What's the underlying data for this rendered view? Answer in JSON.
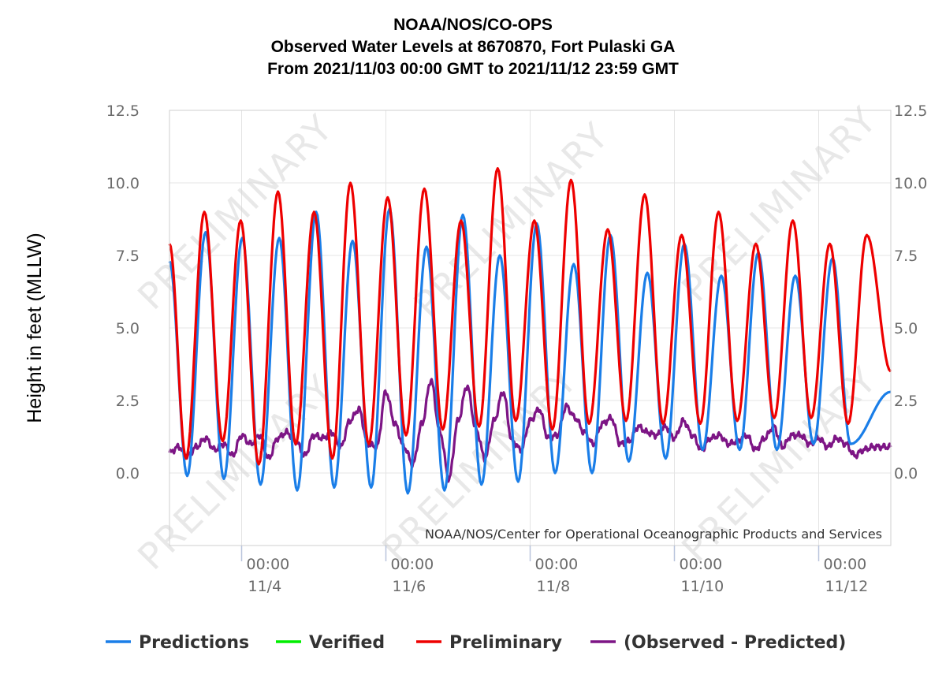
{
  "chart_data": {
    "type": "line",
    "title": [
      "NOAA/NOS/CO-OPS",
      "Observed Water Levels at 8670870, Fort Pulaski GA",
      "From 2021/11/03 00:00 GMT to 2021/11/12 23:59 GMT"
    ],
    "ylabel": "Height in feet (MLLW)",
    "ylim": [
      -2.5,
      12.5
    ],
    "y_ticks": [
      "12.5",
      "10.0",
      "7.5",
      "5.0",
      "2.5",
      "0.0"
    ],
    "x_unit": "hours since 2021/11/03 00:00 GMT",
    "xlim": [
      0,
      240
    ],
    "x_ticks": [
      {
        "t": 24,
        "time": "00:00",
        "date": "11/4"
      },
      {
        "t": 72,
        "time": "00:00",
        "date": "11/6"
      },
      {
        "t": 120,
        "time": "00:00",
        "date": "11/8"
      },
      {
        "t": 168,
        "time": "00:00",
        "date": "11/10"
      },
      {
        "t": 216,
        "time": "00:00",
        "date": "11/12"
      }
    ],
    "grid": true,
    "legend_position": "bottom",
    "watermark": "PRELIMINARY",
    "credit": "NOAA/NOS/Center for Operational Oceanographic Products and Services",
    "series": [
      {
        "name": "Predictions",
        "color": "#1a7ee8",
        "extrema": [
          [
            0,
            7.3
          ],
          [
            5.9,
            -0.1
          ],
          [
            12.0,
            8.3
          ],
          [
            18.1,
            -0.2
          ],
          [
            24.2,
            8.1
          ],
          [
            30.3,
            -0.4
          ],
          [
            36.5,
            8.1
          ],
          [
            42.5,
            -0.6
          ],
          [
            48.8,
            9.0
          ],
          [
            54.8,
            -0.5
          ],
          [
            60.9,
            8.0
          ],
          [
            67.1,
            -0.5
          ],
          [
            73.2,
            9.1
          ],
          [
            79.3,
            -0.7
          ],
          [
            85.5,
            7.8
          ],
          [
            91.5,
            -0.6
          ],
          [
            97.6,
            8.9
          ],
          [
            103.8,
            -0.4
          ],
          [
            109.9,
            7.5
          ],
          [
            116.0,
            -0.3
          ],
          [
            122.2,
            8.6
          ],
          [
            128.3,
            0.0
          ],
          [
            134.5,
            7.2
          ],
          [
            140.6,
            0.0
          ],
          [
            146.7,
            8.2
          ],
          [
            152.8,
            0.4
          ],
          [
            159.0,
            6.9
          ],
          [
            165.1,
            0.5
          ],
          [
            171.3,
            7.9
          ],
          [
            177.4,
            0.8
          ],
          [
            183.6,
            6.8
          ],
          [
            189.7,
            0.8
          ],
          [
            195.9,
            7.6
          ],
          [
            202.1,
            0.8
          ],
          [
            208.2,
            6.8
          ],
          [
            214.3,
            1.0
          ],
          [
            220.6,
            7.4
          ],
          [
            226.6,
            1.0
          ],
          [
            240,
            2.8
          ]
        ]
      },
      {
        "name": "Verified",
        "color": "#00ee00",
        "extrema": []
      },
      {
        "name": "Preliminary",
        "color": "#ee0000",
        "extrema": [
          [
            0,
            7.9
          ],
          [
            5.5,
            0.5
          ],
          [
            11.6,
            9.0
          ],
          [
            17.7,
            1.1
          ],
          [
            23.7,
            8.7
          ],
          [
            29.7,
            0.3
          ],
          [
            36.1,
            9.7
          ],
          [
            42.0,
            1.0
          ],
          [
            48.1,
            9.0
          ],
          [
            54.2,
            0.5
          ],
          [
            60.2,
            10.0
          ],
          [
            66.3,
            1.0
          ],
          [
            72.6,
            9.5
          ],
          [
            78.7,
            1.3
          ],
          [
            84.8,
            9.8
          ],
          [
            90.9,
            1.5
          ],
          [
            97.0,
            8.7
          ],
          [
            103.0,
            1.6
          ],
          [
            109.2,
            10.5
          ],
          [
            115.2,
            1.8
          ],
          [
            121.4,
            8.7
          ],
          [
            127.4,
            1.5
          ],
          [
            133.6,
            10.1
          ],
          [
            139.6,
            1.7
          ],
          [
            145.8,
            8.4
          ],
          [
            151.9,
            1.8
          ],
          [
            158.1,
            9.6
          ],
          [
            164.2,
            1.7
          ],
          [
            170.4,
            8.2
          ],
          [
            176.6,
            1.7
          ],
          [
            182.7,
            9.0
          ],
          [
            188.9,
            1.8
          ],
          [
            195.1,
            7.9
          ],
          [
            201.2,
            1.9
          ],
          [
            207.4,
            8.7
          ],
          [
            213.5,
            1.9
          ],
          [
            219.7,
            7.9
          ],
          [
            225.8,
            1.7
          ],
          [
            232.0,
            8.2
          ],
          [
            240,
            3.5
          ]
        ]
      },
      {
        "name": "(Observed - Predicted)",
        "color": "#7d1585",
        "extrema": [
          [
            0,
            0.7
          ],
          [
            3,
            0.9
          ],
          [
            6,
            0.6
          ],
          [
            9,
            0.9
          ],
          [
            12,
            1.2
          ],
          [
            15,
            0.8
          ],
          [
            18,
            1.0
          ],
          [
            21,
            0.6
          ],
          [
            24,
            1.3
          ],
          [
            27,
            1.0
          ],
          [
            30,
            1.3
          ],
          [
            33,
            0.5
          ],
          [
            36,
            1.2
          ],
          [
            39,
            1.4
          ],
          [
            42,
            1.1
          ],
          [
            45,
            0.6
          ],
          [
            48,
            1.3
          ],
          [
            51,
            1.2
          ],
          [
            54,
            1.4
          ],
          [
            57,
            0.9
          ],
          [
            60,
            1.8
          ],
          [
            63,
            2.2
          ],
          [
            66,
            1.0
          ],
          [
            69,
            0.9
          ],
          [
            72,
            2.8
          ],
          [
            75,
            1.7
          ],
          [
            78,
            0.9
          ],
          [
            81,
            0.3
          ],
          [
            84,
            1.7
          ],
          [
            87,
            3.2
          ],
          [
            90,
            1.4
          ],
          [
            93,
            -0.2
          ],
          [
            96,
            1.8
          ],
          [
            99,
            3.0
          ],
          [
            102,
            1.5
          ],
          [
            105,
            0.5
          ],
          [
            108,
            1.8
          ],
          [
            111,
            2.8
          ],
          [
            114,
            1.1
          ],
          [
            117,
            0.8
          ],
          [
            120,
            1.8
          ],
          [
            123,
            2.2
          ],
          [
            126,
            1.2
          ],
          [
            129,
            1.3
          ],
          [
            132,
            2.3
          ],
          [
            135,
            1.9
          ],
          [
            138,
            1.4
          ],
          [
            141,
            1.0
          ],
          [
            144,
            1.7
          ],
          [
            147,
            1.9
          ],
          [
            150,
            1.0
          ],
          [
            153,
            1.1
          ],
          [
            156,
            1.6
          ],
          [
            159,
            1.4
          ],
          [
            162,
            1.3
          ],
          [
            165,
            1.6
          ],
          [
            168,
            1.2
          ],
          [
            171,
            1.8
          ],
          [
            174,
            1.3
          ],
          [
            177,
            0.8
          ],
          [
            180,
            1.2
          ],
          [
            183,
            1.3
          ],
          [
            186,
            1.0
          ],
          [
            189,
            1.1
          ],
          [
            192,
            1.3
          ],
          [
            195,
            0.8
          ],
          [
            198,
            1.2
          ],
          [
            201,
            1.6
          ],
          [
            204,
            0.9
          ],
          [
            207,
            1.3
          ],
          [
            210,
            1.3
          ],
          [
            213,
            1.0
          ],
          [
            216,
            1.2
          ],
          [
            219,
            0.9
          ],
          [
            222,
            1.2
          ],
          [
            225,
            1.0
          ],
          [
            228,
            0.6
          ],
          [
            231,
            0.8
          ],
          [
            234,
            0.9
          ],
          [
            237,
            0.9
          ],
          [
            240,
            0.9
          ]
        ]
      }
    ]
  }
}
